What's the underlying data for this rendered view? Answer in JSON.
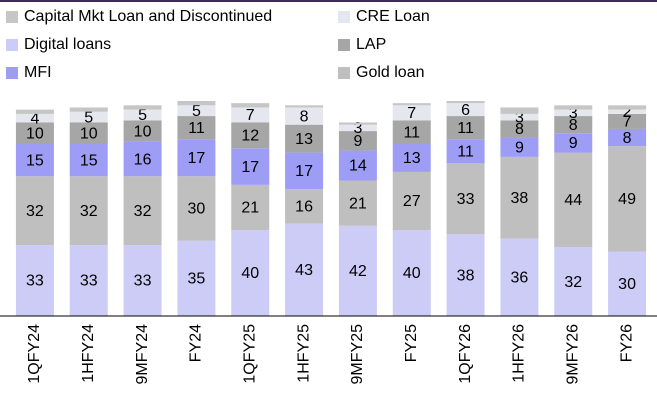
{
  "chart_data": {
    "type": "stacked_bar",
    "categories": [
      "1QFY24",
      "1HFY24",
      "9MFY24",
      "FY24",
      "1QFY25",
      "1HFY25",
      "9MFY25",
      "FY25",
      "1QFY26",
      "1HFY26",
      "9MFY26",
      "FY26"
    ],
    "ylim": [
      0,
      100
    ],
    "series": [
      {
        "name": "Digital loans",
        "color": "#ccccf7",
        "values": [
          33,
          33,
          33,
          35,
          40,
          43,
          42,
          40,
          38,
          36,
          32,
          30
        ]
      },
      {
        "name": "Gold loan",
        "color": "#bfbfbf",
        "values": [
          32,
          32,
          32,
          30,
          21,
          16,
          21,
          27,
          33,
          38,
          44,
          49
        ]
      },
      {
        "name": "MFI",
        "color": "#9d9df5",
        "values": [
          15,
          15,
          16,
          17,
          17,
          17,
          14,
          13,
          11,
          9,
          9,
          8
        ]
      },
      {
        "name": "LAP",
        "color": "#a6a6a6",
        "values": [
          10,
          10,
          10,
          11,
          12,
          13,
          9,
          11,
          11,
          8,
          8,
          7
        ]
      },
      {
        "name": "CRE Loan",
        "color": "#e6e6ee",
        "values": [
          4,
          5,
          5,
          5,
          7,
          8,
          3,
          7,
          6,
          3,
          3,
          2
        ]
      },
      {
        "name": "Capital Mkt Loan and Discontinued",
        "color": "#c6c6c6",
        "labels": false,
        "values": [
          2,
          2,
          2,
          2,
          2,
          1,
          1,
          1,
          1,
          3,
          2,
          2
        ]
      }
    ],
    "legend_order": [
      5,
      4,
      0,
      3,
      2,
      1
    ]
  }
}
